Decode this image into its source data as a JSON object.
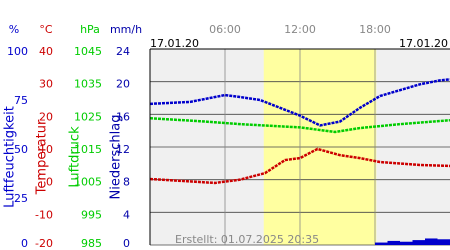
{
  "chart_data": {
    "type": "line",
    "date_left": "17.01.20",
    "date_right": "17.01.20",
    "note": "Erstellt: 01.07.2025 20:35",
    "xlim": [
      0,
      24
    ],
    "xticks": [
      {
        "value": 6,
        "label": "06:00"
      },
      {
        "value": 12,
        "label": "12:00"
      },
      {
        "value": 18,
        "label": "18:00"
      }
    ],
    "highlight": {
      "x": [
        9.1,
        18.1
      ],
      "color": "#ffffa0"
    },
    "background": "#f0f0f0",
    "axes": [
      {
        "unit": "%",
        "title": "Luftfeuchtigkeit",
        "color": "#0000cc",
        "lim": [
          0,
          100
        ],
        "ticks": [
          0,
          25,
          50,
          75,
          100
        ]
      },
      {
        "unit": "°C",
        "title": "Temperatur",
        "color": "#cc0000",
        "lim": [
          -20,
          40
        ],
        "ticks": [
          -20,
          -10,
          0,
          10,
          20,
          30,
          40
        ]
      },
      {
        "unit": "hPa",
        "title": "Luftdruck",
        "color": "#00cc00",
        "lim": [
          985,
          1045
        ],
        "ticks": [
          985,
          995,
          1005,
          1015,
          1025,
          1035,
          1045
        ]
      },
      {
        "unit": "mm/h",
        "title": "Niederschlag",
        "color": "#0000aa",
        "lim": [
          0,
          24
        ],
        "ticks": [
          0,
          4,
          8,
          12,
          16,
          20,
          24
        ]
      }
    ],
    "series": [
      {
        "name": "Luftfeuchtigkeit",
        "color": "#0000cc",
        "axis": 0,
        "kind": "line",
        "x": [
          0,
          3.2,
          5.2,
          6,
          7.2,
          8.8,
          10.4,
          12,
          13.6,
          15.2,
          16.8,
          18.4,
          20,
          21.6,
          23.2,
          24
        ],
        "values": [
          72,
          73,
          75.5,
          76.5,
          75.5,
          74,
          70,
          66,
          61,
          63,
          70,
          76,
          79,
          82,
          84,
          84.5
        ]
      },
      {
        "name": "Temperatur",
        "color": "#cc0000",
        "axis": 1,
        "kind": "line",
        "x": [
          0,
          5.2,
          7.2,
          9.2,
          10.8,
          12,
          13.4,
          15.2,
          16.8,
          18.4,
          21.6,
          24
        ],
        "values": [
          0.2,
          -1,
          0,
          2,
          6,
          6.6,
          9.4,
          7.5,
          6.6,
          5.4,
          4.5,
          4.2
        ]
      },
      {
        "name": "Luftdruck",
        "color": "#00cc00",
        "axis": 2,
        "kind": "line",
        "x": [
          0,
          4,
          7.2,
          12,
          14.8,
          16.8,
          20,
          24
        ],
        "values": [
          1023.8,
          1022.9,
          1022,
          1021,
          1019.6,
          1020.8,
          1022,
          1023.2
        ]
      },
      {
        "name": "Niederschlag",
        "color": "#0000cc",
        "axis": 3,
        "kind": "bar",
        "x": [
          18.5,
          19.5,
          20.5,
          21.5,
          22.5,
          23.5
        ],
        "values": [
          0.3,
          0.5,
          0.4,
          0.6,
          0.8,
          0.7
        ]
      }
    ]
  }
}
